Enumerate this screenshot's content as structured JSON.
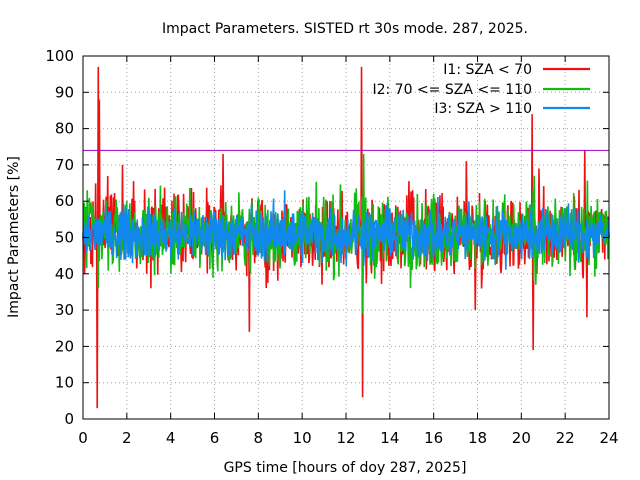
{
  "chart_data": {
    "type": "line",
    "title": "Impact Parameters. SISTED rt 30s mode. 287, 2025.",
    "xlabel": "GPS time [hours of doy 287, 2025]",
    "ylabel": "Impact Parameters [%]",
    "xlim": [
      0,
      24
    ],
    "ylim": [
      0,
      100
    ],
    "xticks": [
      0,
      2,
      4,
      6,
      8,
      10,
      12,
      14,
      16,
      18,
      20,
      22,
      24
    ],
    "yticks": [
      0,
      10,
      20,
      30,
      40,
      50,
      60,
      70,
      80,
      90,
      100
    ],
    "grid": true,
    "legend_position": "top-right",
    "threshold": {
      "value": 74,
      "color": "#9900cc"
    },
    "series": [
      {
        "name": "I1: SZA < 70",
        "color": "#ee1111",
        "x": [
          0.0,
          0.6,
          0.65,
          0.7,
          0.75,
          1.8,
          2.9,
          3.1,
          4.6,
          6.4,
          7.6,
          9.9,
          12.7,
          12.75,
          15.0,
          17.5,
          17.9,
          20.5,
          20.55,
          20.8,
          22.9,
          23.0,
          24.0
        ],
        "values": [
          50,
          51,
          3,
          97,
          88,
          70,
          40,
          36,
          62,
          73,
          24,
          50,
          97,
          6,
          60,
          71,
          30,
          84,
          19,
          69,
          74,
          28,
          50
        ]
      },
      {
        "name": "I2: 70 <= SZA <= 110",
        "color": "#11bb11",
        "x": [
          0.0,
          0.2,
          0.7,
          2.0,
          4.0,
          8.0,
          12.75,
          12.8,
          16.0,
          20.6,
          20.65,
          24.0
        ],
        "values": [
          50,
          63,
          36,
          60,
          40,
          61,
          29,
          73,
          62,
          67,
          37,
          50
        ]
      },
      {
        "name": "I3: SZA > 110",
        "color": "#1188ee",
        "x": [
          0.0,
          2.0,
          4.0,
          6.0,
          8.0,
          9.2,
          12.0,
          14.0,
          16.0,
          18.0,
          20.0,
          22.0,
          24.0
        ],
        "values": [
          50,
          58,
          44,
          57,
          45,
          63,
          42,
          58,
          45,
          56,
          44,
          58,
          50
        ]
      }
    ]
  }
}
